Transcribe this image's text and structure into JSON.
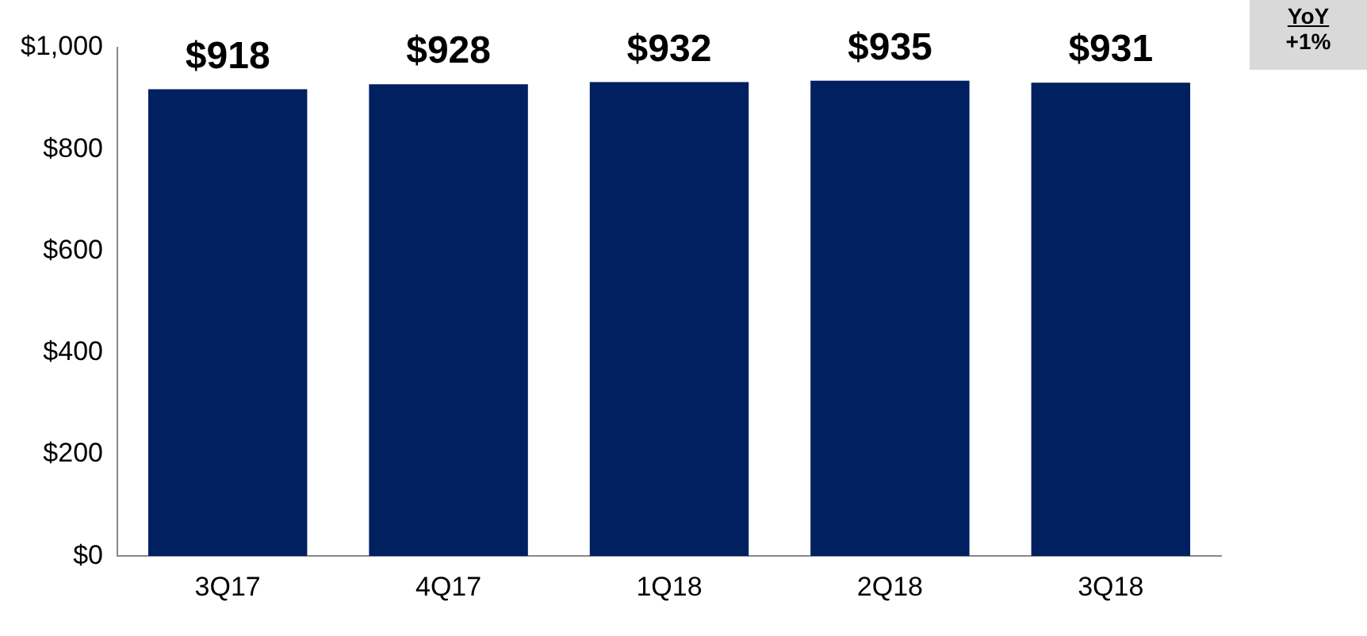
{
  "chart_data": {
    "type": "bar",
    "categories": [
      "3Q17",
      "4Q17",
      "1Q18",
      "2Q18",
      "3Q18"
    ],
    "values": [
      918,
      928,
      932,
      935,
      931
    ],
    "value_labels": [
      "$918",
      "$928",
      "$932",
      "$935",
      "$931"
    ],
    "color": "#002060",
    "ylim": [
      0,
      1000
    ],
    "yticks": [
      {
        "value": 0,
        "label": "$0"
      },
      {
        "value": 200,
        "label": "$200"
      },
      {
        "value": 400,
        "label": "$400"
      },
      {
        "value": 600,
        "label": "$600"
      },
      {
        "value": 800,
        "label": "$800"
      },
      {
        "value": 1000,
        "label": "$1,000"
      }
    ],
    "grid": false,
    "legend": false,
    "annotations": [
      "YoY",
      "+1%"
    ]
  }
}
